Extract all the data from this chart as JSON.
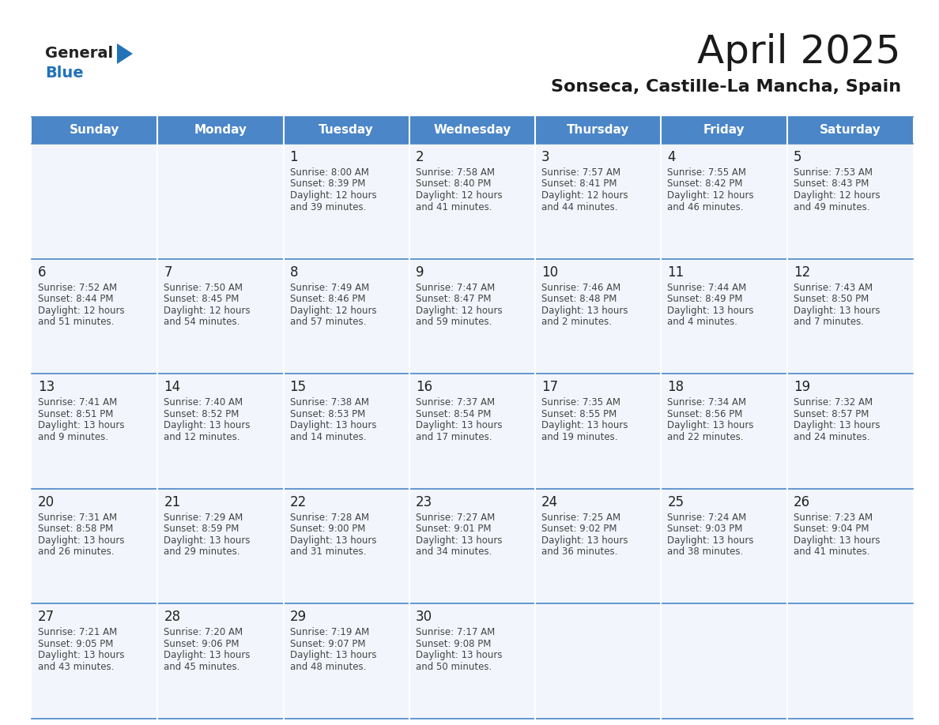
{
  "title": "April 2025",
  "subtitle": "Sonseca, Castille-La Mancha, Spain",
  "days_of_week": [
    "Sunday",
    "Monday",
    "Tuesday",
    "Wednesday",
    "Thursday",
    "Friday",
    "Saturday"
  ],
  "header_bg": "#4a86c8",
  "header_text": "#ffffff",
  "cell_bg": "#f2f6fc",
  "line_color": "#4a86c8",
  "text_color": "#444444",
  "day_num_color": "#222222",
  "logo_dark": "#222222",
  "logo_blue": "#2272b9",
  "title_color": "#1a1a1a",
  "weeks": [
    [
      {
        "day": null,
        "data": null
      },
      {
        "day": null,
        "data": null
      },
      {
        "day": 1,
        "data": {
          "sunrise": "8:00 AM",
          "sunset": "8:39 PM",
          "daylight_h": "12 hours",
          "daylight_m": "39 minutes."
        }
      },
      {
        "day": 2,
        "data": {
          "sunrise": "7:58 AM",
          "sunset": "8:40 PM",
          "daylight_h": "12 hours",
          "daylight_m": "41 minutes."
        }
      },
      {
        "day": 3,
        "data": {
          "sunrise": "7:57 AM",
          "sunset": "8:41 PM",
          "daylight_h": "12 hours",
          "daylight_m": "44 minutes."
        }
      },
      {
        "day": 4,
        "data": {
          "sunrise": "7:55 AM",
          "sunset": "8:42 PM",
          "daylight_h": "12 hours",
          "daylight_m": "46 minutes."
        }
      },
      {
        "day": 5,
        "data": {
          "sunrise": "7:53 AM",
          "sunset": "8:43 PM",
          "daylight_h": "12 hours",
          "daylight_m": "49 minutes."
        }
      }
    ],
    [
      {
        "day": 6,
        "data": {
          "sunrise": "7:52 AM",
          "sunset": "8:44 PM",
          "daylight_h": "12 hours",
          "daylight_m": "51 minutes."
        }
      },
      {
        "day": 7,
        "data": {
          "sunrise": "7:50 AM",
          "sunset": "8:45 PM",
          "daylight_h": "12 hours",
          "daylight_m": "54 minutes."
        }
      },
      {
        "day": 8,
        "data": {
          "sunrise": "7:49 AM",
          "sunset": "8:46 PM",
          "daylight_h": "12 hours",
          "daylight_m": "57 minutes."
        }
      },
      {
        "day": 9,
        "data": {
          "sunrise": "7:47 AM",
          "sunset": "8:47 PM",
          "daylight_h": "12 hours",
          "daylight_m": "59 minutes."
        }
      },
      {
        "day": 10,
        "data": {
          "sunrise": "7:46 AM",
          "sunset": "8:48 PM",
          "daylight_h": "13 hours",
          "daylight_m": "2 minutes."
        }
      },
      {
        "day": 11,
        "data": {
          "sunrise": "7:44 AM",
          "sunset": "8:49 PM",
          "daylight_h": "13 hours",
          "daylight_m": "4 minutes."
        }
      },
      {
        "day": 12,
        "data": {
          "sunrise": "7:43 AM",
          "sunset": "8:50 PM",
          "daylight_h": "13 hours",
          "daylight_m": "7 minutes."
        }
      }
    ],
    [
      {
        "day": 13,
        "data": {
          "sunrise": "7:41 AM",
          "sunset": "8:51 PM",
          "daylight_h": "13 hours",
          "daylight_m": "9 minutes."
        }
      },
      {
        "day": 14,
        "data": {
          "sunrise": "7:40 AM",
          "sunset": "8:52 PM",
          "daylight_h": "13 hours",
          "daylight_m": "12 minutes."
        }
      },
      {
        "day": 15,
        "data": {
          "sunrise": "7:38 AM",
          "sunset": "8:53 PM",
          "daylight_h": "13 hours",
          "daylight_m": "14 minutes."
        }
      },
      {
        "day": 16,
        "data": {
          "sunrise": "7:37 AM",
          "sunset": "8:54 PM",
          "daylight_h": "13 hours",
          "daylight_m": "17 minutes."
        }
      },
      {
        "day": 17,
        "data": {
          "sunrise": "7:35 AM",
          "sunset": "8:55 PM",
          "daylight_h": "13 hours",
          "daylight_m": "19 minutes."
        }
      },
      {
        "day": 18,
        "data": {
          "sunrise": "7:34 AM",
          "sunset": "8:56 PM",
          "daylight_h": "13 hours",
          "daylight_m": "22 minutes."
        }
      },
      {
        "day": 19,
        "data": {
          "sunrise": "7:32 AM",
          "sunset": "8:57 PM",
          "daylight_h": "13 hours",
          "daylight_m": "24 minutes."
        }
      }
    ],
    [
      {
        "day": 20,
        "data": {
          "sunrise": "7:31 AM",
          "sunset": "8:58 PM",
          "daylight_h": "13 hours",
          "daylight_m": "26 minutes."
        }
      },
      {
        "day": 21,
        "data": {
          "sunrise": "7:29 AM",
          "sunset": "8:59 PM",
          "daylight_h": "13 hours",
          "daylight_m": "29 minutes."
        }
      },
      {
        "day": 22,
        "data": {
          "sunrise": "7:28 AM",
          "sunset": "9:00 PM",
          "daylight_h": "13 hours",
          "daylight_m": "31 minutes."
        }
      },
      {
        "day": 23,
        "data": {
          "sunrise": "7:27 AM",
          "sunset": "9:01 PM",
          "daylight_h": "13 hours",
          "daylight_m": "34 minutes."
        }
      },
      {
        "day": 24,
        "data": {
          "sunrise": "7:25 AM",
          "sunset": "9:02 PM",
          "daylight_h": "13 hours",
          "daylight_m": "36 minutes."
        }
      },
      {
        "day": 25,
        "data": {
          "sunrise": "7:24 AM",
          "sunset": "9:03 PM",
          "daylight_h": "13 hours",
          "daylight_m": "38 minutes."
        }
      },
      {
        "day": 26,
        "data": {
          "sunrise": "7:23 AM",
          "sunset": "9:04 PM",
          "daylight_h": "13 hours",
          "daylight_m": "41 minutes."
        }
      }
    ],
    [
      {
        "day": 27,
        "data": {
          "sunrise": "7:21 AM",
          "sunset": "9:05 PM",
          "daylight_h": "13 hours",
          "daylight_m": "43 minutes."
        }
      },
      {
        "day": 28,
        "data": {
          "sunrise": "7:20 AM",
          "sunset": "9:06 PM",
          "daylight_h": "13 hours",
          "daylight_m": "45 minutes."
        }
      },
      {
        "day": 29,
        "data": {
          "sunrise": "7:19 AM",
          "sunset": "9:07 PM",
          "daylight_h": "13 hours",
          "daylight_m": "48 minutes."
        }
      },
      {
        "day": 30,
        "data": {
          "sunrise": "7:17 AM",
          "sunset": "9:08 PM",
          "daylight_h": "13 hours",
          "daylight_m": "50 minutes."
        }
      },
      {
        "day": null,
        "data": null
      },
      {
        "day": null,
        "data": null
      },
      {
        "day": null,
        "data": null
      }
    ]
  ]
}
